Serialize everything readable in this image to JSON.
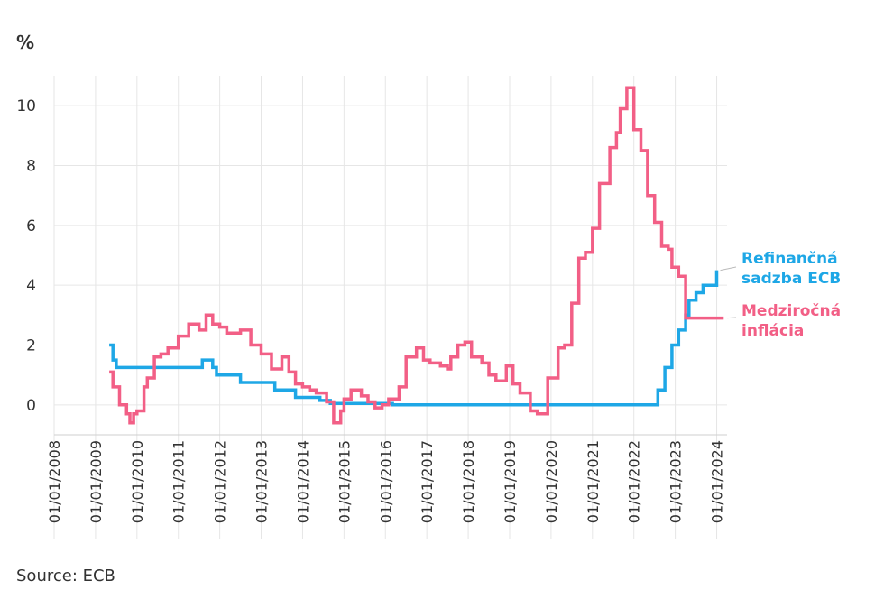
{
  "source": "Source: ECB",
  "chart_data": {
    "type": "line",
    "title": "",
    "ylabel": "%",
    "xlabel": "",
    "ylim": [
      -1,
      11
    ],
    "yticks": [
      0,
      2,
      4,
      6,
      8,
      10
    ],
    "ytick_labels": [
      "0",
      "2",
      "4",
      "6",
      "8",
      "10"
    ],
    "xlim": [
      2008.0,
      2024.25
    ],
    "xticks": [
      2008,
      2009,
      2010,
      2011,
      2012,
      2013,
      2014,
      2015,
      2016,
      2017,
      2018,
      2019,
      2020,
      2021,
      2022,
      2023,
      2024
    ],
    "xtick_labels": [
      "01/01/2008",
      "01/01/2009",
      "01/01/2010",
      "01/01/2011",
      "01/01/2012",
      "01/01/2013",
      "01/01/2014",
      "01/01/2015",
      "01/01/2016",
      "01/01/2017",
      "01/01/2018",
      "01/01/2019",
      "01/01/2020",
      "01/01/2021",
      "01/01/2022",
      "01/01/2023",
      "01/01/2024"
    ],
    "grid": true,
    "step": true,
    "series": [
      {
        "name": "Refinančná sadzba ECB",
        "label_lines": [
          "Refinančná",
          "sadzba ECB"
        ],
        "color": "#1ea7e6",
        "x": [
          2009.33,
          2009.42,
          2009.5,
          2011.33,
          2011.58,
          2011.83,
          2011.92,
          2012.5,
          2013.33,
          2013.83,
          2014.42,
          2014.67,
          2016.17,
          2022.58,
          2022.75,
          2022.92,
          2023.08,
          2023.25,
          2023.33,
          2023.5,
          2023.67,
          2024.0
        ],
        "y": [
          2.0,
          1.5,
          1.25,
          1.25,
          1.5,
          1.25,
          1.0,
          0.75,
          0.5,
          0.25,
          0.15,
          0.05,
          0.0,
          0.5,
          1.25,
          2.0,
          2.5,
          3.0,
          3.5,
          3.75,
          4.0,
          4.5
        ]
      },
      {
        "name": "Medziročná inflácia",
        "label_lines": [
          "Medziročná",
          "inflácia"
        ],
        "color": "#f25f86",
        "x": [
          2009.33,
          2009.42,
          2009.58,
          2009.75,
          2009.83,
          2009.92,
          2010.0,
          2010.17,
          2010.25,
          2010.42,
          2010.58,
          2010.75,
          2011.0,
          2011.25,
          2011.5,
          2011.67,
          2011.83,
          2012.0,
          2012.17,
          2012.5,
          2012.75,
          2013.0,
          2013.25,
          2013.5,
          2013.67,
          2013.83,
          2014.0,
          2014.17,
          2014.33,
          2014.58,
          2014.75,
          2014.92,
          2015.0,
          2015.17,
          2015.42,
          2015.58,
          2015.75,
          2015.92,
          2016.08,
          2016.33,
          2016.5,
          2016.75,
          2016.92,
          2017.08,
          2017.33,
          2017.5,
          2017.58,
          2017.75,
          2017.92,
          2018.08,
          2018.33,
          2018.5,
          2018.67,
          2018.92,
          2019.08,
          2019.25,
          2019.5,
          2019.67,
          2019.92,
          2020.17,
          2020.33,
          2020.5,
          2020.67,
          2020.83,
          2021.0,
          2021.17,
          2021.42,
          2021.58,
          2021.67,
          2021.83,
          2022.0,
          2022.17,
          2022.33,
          2022.5,
          2022.67,
          2022.83,
          2022.92,
          2023.08,
          2023.25,
          2023.42,
          2023.58,
          2023.75,
          2023.92,
          2024.0,
          2024.08,
          2024.17
        ],
        "y": [
          1.1,
          0.6,
          0.0,
          -0.3,
          -0.6,
          -0.3,
          -0.2,
          0.6,
          0.9,
          1.6,
          1.7,
          1.9,
          2.3,
          2.7,
          2.5,
          3.0,
          2.7,
          2.6,
          2.4,
          2.5,
          2.0,
          1.7,
          1.2,
          1.6,
          1.1,
          0.7,
          0.6,
          0.5,
          0.4,
          0.1,
          -0.6,
          -0.2,
          0.2,
          0.5,
          0.3,
          0.1,
          -0.1,
          0.0,
          0.2,
          0.6,
          1.6,
          1.9,
          1.5,
          1.4,
          1.3,
          1.2,
          1.6,
          2.0,
          2.1,
          1.6,
          1.4,
          1.0,
          0.8,
          1.3,
          0.7,
          0.4,
          -0.2,
          -0.3,
          0.9,
          1.9,
          2.0,
          3.4,
          4.9,
          5.1,
          5.9,
          7.4,
          8.6,
          9.1,
          9.9,
          10.6,
          9.2,
          8.5,
          7.0,
          6.1,
          5.3,
          5.2,
          4.6,
          4.3,
          2.9,
          2.9,
          2.9,
          2.9,
          2.9,
          2.9,
          2.9,
          2.9
        ]
      }
    ]
  }
}
